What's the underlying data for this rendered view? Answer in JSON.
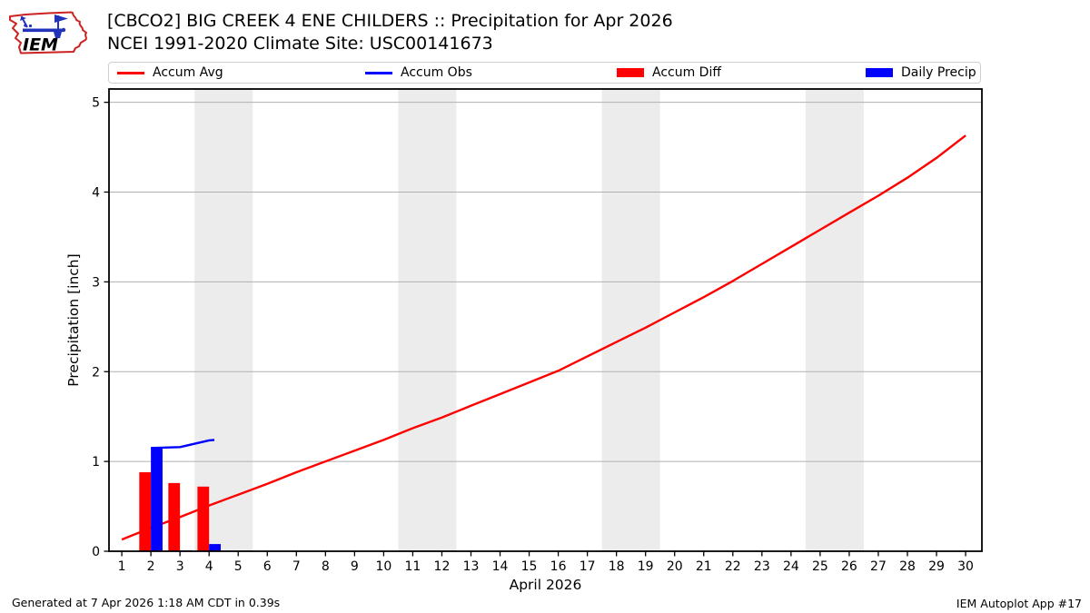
{
  "logo": {
    "text": "IEM",
    "outline_color": "#cc2222",
    "instrument_color": "#2233bb"
  },
  "header": {
    "title_line1": "[CBCO2] BIG CREEK 4 ENE CHILDERS :: Precipitation for Apr 2026",
    "title_line2": "NCEI 1991-2020 Climate Site: USC00141673"
  },
  "legend": {
    "items": [
      {
        "label": "Accum Avg",
        "swatch": "line",
        "color": "#ff0000"
      },
      {
        "label": "Accum Obs",
        "swatch": "line",
        "color": "#0000ff"
      },
      {
        "label": "Accum Diff",
        "swatch": "patch",
        "color": "#ff0000"
      },
      {
        "label": "Daily Precip",
        "swatch": "patch",
        "color": "#0000ff"
      }
    ]
  },
  "chart_data": {
    "type": "line+bar",
    "title": "[CBCO2] BIG CREEK 4 ENE CHILDERS :: Precipitation for Apr 2026",
    "subtitle": "NCEI 1991-2020 Climate Site: USC00141673",
    "xlabel": "April 2026",
    "ylabel": "Precipitation [inch]",
    "xlim": [
      0.56,
      30.56
    ],
    "ylim": [
      0,
      5.148
    ],
    "x_ticks": [
      1,
      2,
      3,
      4,
      5,
      6,
      7,
      8,
      9,
      10,
      11,
      12,
      13,
      14,
      15,
      16,
      17,
      18,
      19,
      20,
      21,
      22,
      23,
      24,
      25,
      26,
      27,
      28,
      29,
      30
    ],
    "y_ticks": [
      0,
      1,
      2,
      3,
      4,
      5
    ],
    "grid": true,
    "grid_color": "#b0b0b0",
    "weekend_band_color": "#ececec",
    "weekend_bands": [
      [
        3.5,
        5.5
      ],
      [
        10.5,
        12.5
      ],
      [
        17.5,
        19.5
      ],
      [
        24.5,
        26.5
      ]
    ],
    "legend_position": "top",
    "series": [
      {
        "name": "Accum Avg",
        "type": "line",
        "color": "#ff0000",
        "x": [
          1,
          2,
          3,
          4,
          5,
          6,
          7,
          8,
          9,
          10,
          11,
          12,
          13,
          14,
          15,
          16,
          17,
          18,
          19,
          20,
          21,
          22,
          23,
          24,
          25,
          26,
          27,
          28,
          29,
          30
        ],
        "y": [
          0.13,
          0.26,
          0.38,
          0.51,
          0.63,
          0.75,
          0.88,
          1.0,
          1.12,
          1.24,
          1.37,
          1.49,
          1.62,
          1.75,
          1.88,
          2.01,
          2.17,
          2.33,
          2.49,
          2.66,
          2.83,
          3.01,
          3.2,
          3.39,
          3.58,
          3.77,
          3.96,
          4.16,
          4.38,
          4.63
        ]
      },
      {
        "name": "Accum Obs",
        "type": "line",
        "color": "#0000ff",
        "x": [
          2,
          3,
          4,
          4.18
        ],
        "y": [
          1.15,
          1.16,
          1.235,
          1.24
        ]
      },
      {
        "name": "Accum Diff",
        "type": "bar",
        "color": "#ff0000",
        "offset": -0.4,
        "bar_width": 0.4,
        "x": [
          2,
          3,
          4
        ],
        "y": [
          0.88,
          0.76,
          0.72
        ]
      },
      {
        "name": "Daily Precip",
        "type": "bar",
        "color": "#0000ff",
        "offset": 0,
        "bar_width": 0.4,
        "x": [
          2,
          3,
          4
        ],
        "y": [
          1.15,
          0.01,
          0.08
        ]
      }
    ]
  },
  "footer": {
    "generated": "Generated at 7 Apr 2026 1:18 AM CDT in 0.39s",
    "app": "IEM Autoplot App #17"
  }
}
